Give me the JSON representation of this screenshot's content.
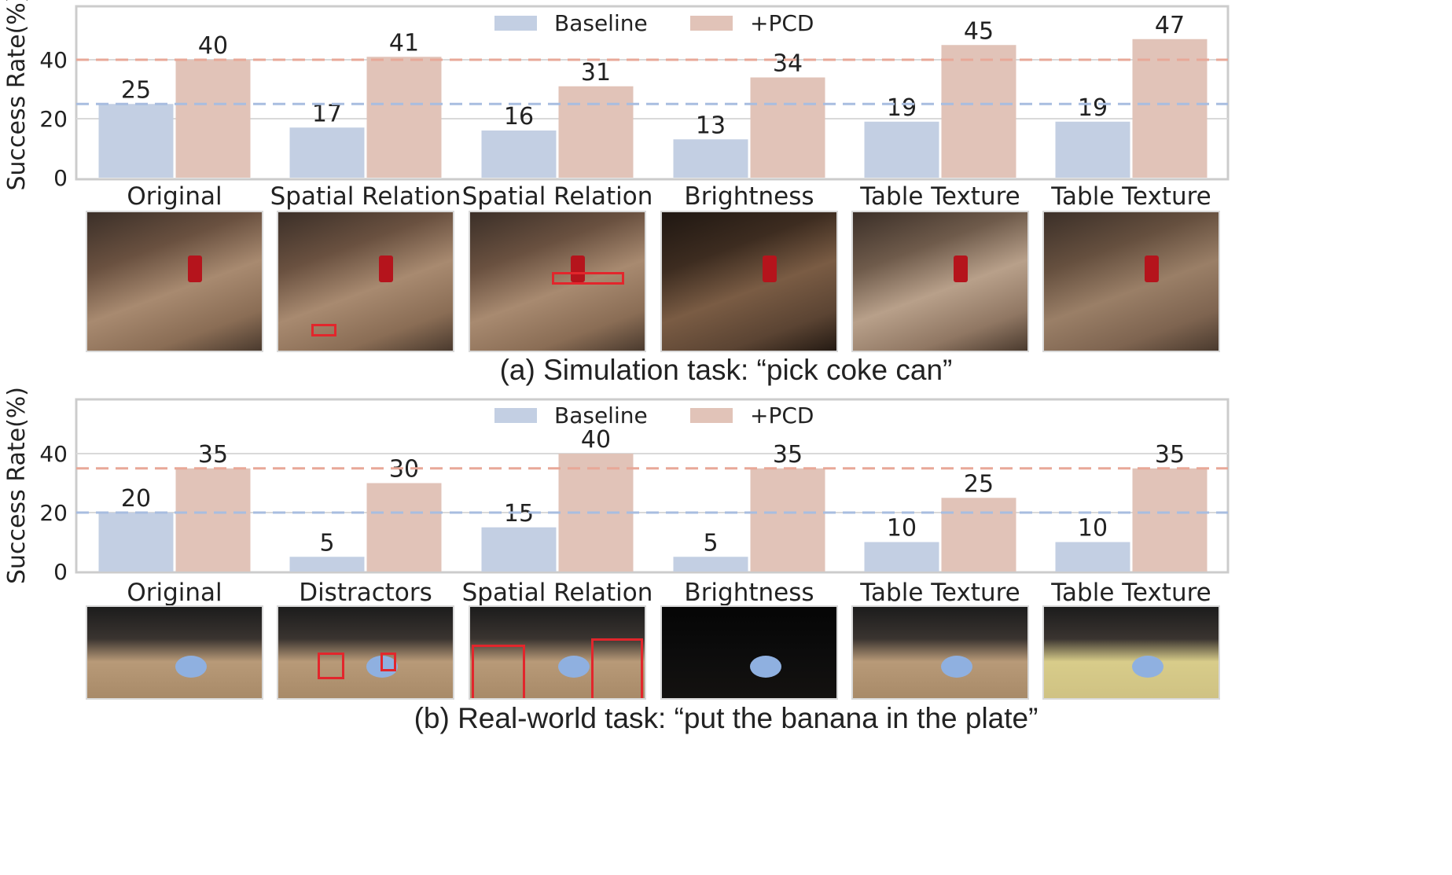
{
  "chart_data": [
    {
      "type": "bar",
      "title": "",
      "xlabel": "",
      "ylabel": "Success Rate(%)",
      "ylim": [
        0,
        58
      ],
      "yticks": [
        "0",
        "20",
        "40"
      ],
      "grid": true,
      "legend_position": "top-center",
      "categories": [
        "Original",
        "Spatial Relation",
        "Spatial Relation",
        "Brightness",
        "Table Texture",
        "Table Texture"
      ],
      "series": [
        {
          "name": "Baseline",
          "color": "#c3cfe3",
          "values": [
            25,
            17,
            16,
            13,
            19,
            19
          ]
        },
        {
          "name": "+PCD",
          "color": "#e1c3b8",
          "values": [
            40,
            41,
            31,
            34,
            45,
            47
          ]
        }
      ],
      "reference_lines": [
        {
          "value": 40,
          "color": "#e8a898",
          "style": "dashed"
        },
        {
          "value": 25,
          "color": "#a8bde0",
          "style": "dashed"
        }
      ],
      "caption": "(a) Simulation task: “pick coke can”"
    },
    {
      "type": "bar",
      "title": "",
      "xlabel": "",
      "ylabel": "Success Rate(%)",
      "ylim": [
        0,
        58
      ],
      "yticks": [
        "0",
        "20",
        "40"
      ],
      "grid": true,
      "legend_position": "top-center",
      "categories": [
        "Original",
        "Distractors",
        "Spatial Relation",
        "Brightness",
        "Table Texture",
        "Table Texture"
      ],
      "series": [
        {
          "name": "Baseline",
          "color": "#c3cfe3",
          "values": [
            20,
            5,
            15,
            5,
            10,
            10
          ]
        },
        {
          "name": "+PCD",
          "color": "#e1c3b8",
          "values": [
            35,
            30,
            40,
            35,
            25,
            35
          ]
        }
      ],
      "reference_lines": [
        {
          "value": 35,
          "color": "#e8a898",
          "style": "dashed"
        },
        {
          "value": 20,
          "color": "#a8bde0",
          "style": "dashed"
        }
      ],
      "caption": "(b) Real-world task: “put the banana in the plate”"
    }
  ]
}
